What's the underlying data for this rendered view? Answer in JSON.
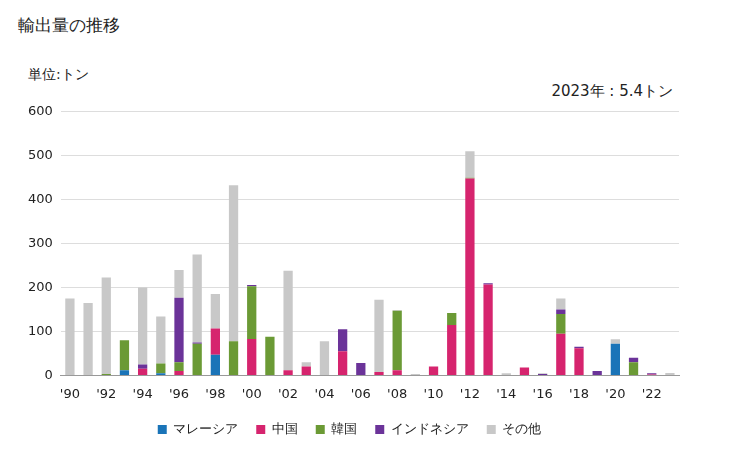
{
  "chart_data": {
    "type": "bar",
    "title": "輸出量の推移",
    "ylabel": "単位:トン",
    "annotations": [
      "2023年 : 5.4トン"
    ],
    "categories": [
      "'90",
      null,
      "'92",
      null,
      "'94",
      null,
      "'96",
      null,
      "'98",
      null,
      "'00",
      null,
      "'02",
      null,
      "'04",
      null,
      "'06",
      null,
      "'08",
      null,
      "'10",
      null,
      "'12",
      null,
      "'14",
      null,
      "'16",
      null,
      "'18",
      null,
      "'20",
      null,
      "'22",
      null
    ],
    "series": [
      {
        "name": "マレーシア",
        "color": "#1a74b8",
        "values": [
          0,
          0,
          0,
          12,
          0,
          5,
          0,
          0,
          47,
          0,
          0,
          0,
          0,
          0,
          0,
          0,
          0,
          0,
          0,
          0,
          0,
          0,
          0,
          0,
          0,
          0,
          0,
          0,
          0,
          0,
          72,
          0,
          0,
          0
        ]
      },
      {
        "name": "中国",
        "color": "#d6246e",
        "values": [
          0,
          0,
          0,
          0,
          15,
          0,
          10,
          0,
          60,
          0,
          83,
          0,
          12,
          20,
          0,
          55,
          0,
          8,
          12,
          0,
          20,
          115,
          448,
          207,
          0,
          18,
          0,
          95,
          62,
          0,
          0,
          0,
          2,
          0
        ]
      },
      {
        "name": "韓国",
        "color": "#6b9a35",
        "values": [
          0,
          0,
          3,
          68,
          0,
          22,
          20,
          72,
          0,
          78,
          120,
          88,
          0,
          0,
          0,
          0,
          0,
          0,
          135,
          0,
          0,
          27,
          2,
          0,
          0,
          0,
          0,
          45,
          0,
          0,
          0,
          30,
          0,
          0
        ]
      },
      {
        "name": "インドネシア",
        "color": "#6b3399",
        "values": [
          0,
          0,
          0,
          0,
          10,
          0,
          147,
          3,
          0,
          0,
          3,
          0,
          0,
          0,
          0,
          50,
          28,
          0,
          0,
          0,
          0,
          0,
          0,
          3,
          0,
          0,
          3,
          10,
          3,
          10,
          0,
          10,
          3,
          0
        ]
      },
      {
        "name": "その他",
        "color": "#c8c8c8",
        "values": [
          175,
          165,
          220,
          0,
          175,
          107,
          63,
          200,
          78,
          355,
          0,
          0,
          226,
          10,
          78,
          0,
          0,
          164,
          2,
          3,
          0,
          0,
          60,
          0,
          5,
          0,
          2,
          25,
          0,
          0,
          10,
          0,
          0,
          5.4
        ]
      }
    ],
    "ylim": [
      0,
      600
    ],
    "yticks": [
      0,
      100,
      200,
      300,
      400,
      500,
      600
    ],
    "stacked": true,
    "grid": true,
    "legend": "bottom"
  }
}
